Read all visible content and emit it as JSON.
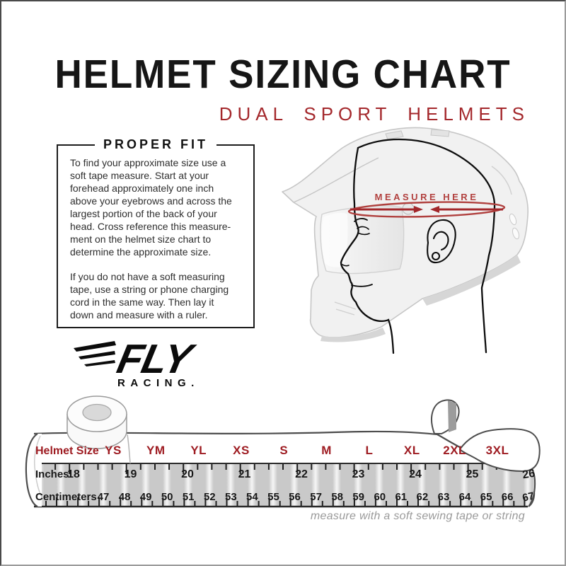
{
  "page": {
    "title": "HELMET SIZING CHART",
    "subtitle": "DUAL SPORT HELMETS",
    "footnote": "measure with a soft sewing tape or string"
  },
  "proper_fit": {
    "heading": "PROPER FIT",
    "paragraph1": "To find your approximate size use a\nsoft tape measure. Start at your\nforehead approximately one inch\nabove your eyebrows and across the\nlargest portion of the back of your\nhead. Cross reference this measure-\nment on the helmet size chart to\ndetermine the approximate size.",
    "paragraph2": "If you do not have a soft measuring\ntape, use a string or phone charging\ncord in the same way. Then lay it\ndown and measure with a ruler."
  },
  "brand": {
    "name": "FLY",
    "sub": "RACING."
  },
  "diagram": {
    "measure_label": "MEASURE HERE"
  },
  "sizing_table": {
    "row_labels": [
      "Helmet Size",
      "Inches",
      "Centimeters"
    ],
    "sizes": [
      "YS",
      "YM",
      "YL",
      "XS",
      "S",
      "M",
      "L",
      "XL",
      "2XL",
      "3XL"
    ],
    "inches": [
      18,
      19,
      20,
      21,
      22,
      23,
      24,
      25,
      26
    ],
    "centimeters": [
      47,
      48,
      49,
      50,
      51,
      52,
      53,
      54,
      55,
      56,
      57,
      58,
      59,
      60,
      61,
      62,
      63,
      64,
      65,
      66,
      67
    ]
  },
  "colors": {
    "ink": "#161616",
    "accent_red": "#A4282C",
    "size_red": "#9E1C22",
    "measure_red": "#B2413F",
    "tape_stripe_gray": "#C9C9C9",
    "tape_outline": "#4D4D4D"
  }
}
